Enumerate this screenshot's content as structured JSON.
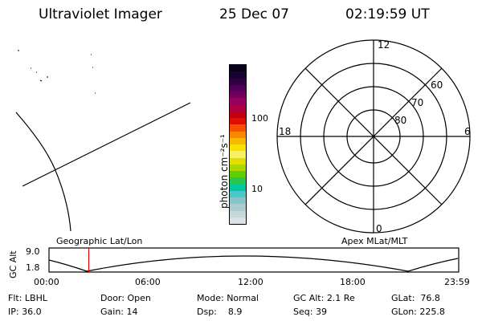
{
  "header": {
    "instrument": "Ultraviolet Imager",
    "date": "25 Dec 07",
    "time": "02:19:59 UT"
  },
  "colorbar": {
    "unit_label": "photon cm⁻²s⁻¹",
    "tick_labels": [
      "100",
      "10"
    ],
    "colors": [
      "#d8e2e8",
      "#c4d8dc",
      "#a8ccd0",
      "#88c4c8",
      "#48c8c8",
      "#00c8a0",
      "#28c850",
      "#60d000",
      "#a8d800",
      "#e0e000",
      "#f8f060",
      "#f8e000",
      "#f8b800",
      "#f88800",
      "#f85000",
      "#e01000",
      "#c00010",
      "#b00040",
      "#980060",
      "#700060",
      "#500058",
      "#300040",
      "#180030",
      "#080018"
    ],
    "colors_note_levels_top_to_bottom": false
  },
  "polar": {
    "mlt_labels": [
      "12",
      "18",
      "6",
      "0"
    ],
    "mlat_labels": [
      "60",
      "70",
      "80"
    ]
  },
  "timeline": {
    "ylabel": "GC Alt",
    "y_ticks": [
      "9.0",
      "1.8"
    ],
    "left_title": "Geographic Lat/Lon",
    "right_title": "Apex  MLat/MLT",
    "x_ticks": [
      "00:00",
      "06:00",
      "12:00",
      "18:00",
      "23:59"
    ],
    "marker_time_hours": 2.33,
    "marker_color": "#e00000"
  },
  "status": [
    [
      {
        "k": "Flt:",
        "v": "LBHL"
      },
      {
        "k": "Door:",
        "v": "Open"
      },
      {
        "k": "Mode:",
        "v": "Normal"
      },
      {
        "k": "GC Alt:",
        "v": "2.1 Re"
      },
      {
        "k": "GLat:",
        "v": "76.8"
      }
    ],
    [
      {
        "k": "IP:",
        "v": "36.0"
      },
      {
        "k": "Gain:",
        "v": "14"
      },
      {
        "k": "Dsp:",
        "v": "8.9"
      },
      {
        "k": "Seq:",
        "v": "39"
      },
      {
        "k": "GLon:",
        "v": "225.8"
      }
    ]
  ]
}
